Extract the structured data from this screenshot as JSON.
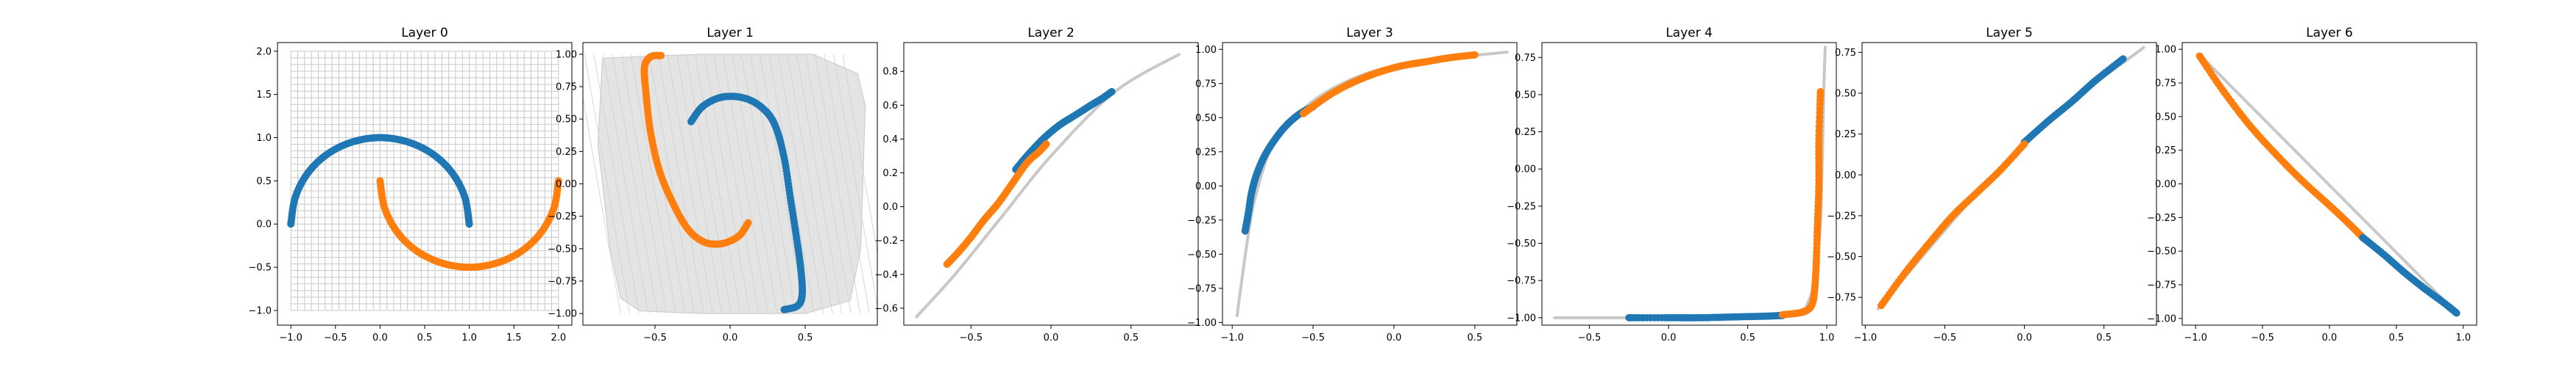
{
  "colors": {
    "blue": "#1f77b4",
    "orange": "#ff7f0e",
    "grid": "#c8c8c8",
    "axis": "#000000"
  },
  "chart_data": [
    {
      "type": "scatter",
      "title": "Layer 0",
      "xlim": [
        -1.15,
        2.15
      ],
      "ylim": [
        -1.17,
        2.1
      ],
      "xticks": [
        {
          "v": -1.0,
          "label": "−1.0"
        },
        {
          "v": -0.5,
          "label": "−0.5"
        },
        {
          "v": 0.0,
          "label": "0.0"
        },
        {
          "v": 0.5,
          "label": "0.5"
        },
        {
          "v": 1.0,
          "label": "1.0"
        },
        {
          "v": 1.5,
          "label": "1.5"
        },
        {
          "v": 2.0,
          "label": "2.0"
        }
      ],
      "yticks": [
        {
          "v": -1.0,
          "label": "−1.0"
        },
        {
          "v": -0.5,
          "label": "−0.5"
        },
        {
          "v": 0.0,
          "label": "0.0"
        },
        {
          "v": 0.5,
          "label": "0.5"
        },
        {
          "v": 1.0,
          "label": "1.0"
        },
        {
          "v": 1.5,
          "label": "1.5"
        },
        {
          "v": 2.0,
          "label": "2.0"
        }
      ],
      "grid_mesh": {
        "xmin": -1.0,
        "xmax": 2.0,
        "ymin": -1.0,
        "ymax": 2.0,
        "lines": 40
      },
      "series": [
        {
          "color": "blue",
          "points": [
            [
              -1.0,
              0.0
            ],
            [
              -0.95,
              0.31
            ],
            [
              -0.81,
              0.59
            ],
            [
              -0.59,
              0.81
            ],
            [
              -0.31,
              0.95
            ],
            [
              0.0,
              1.0
            ],
            [
              0.31,
              0.95
            ],
            [
              0.59,
              0.81
            ],
            [
              0.81,
              0.59
            ],
            [
              0.95,
              0.31
            ],
            [
              1.0,
              0.0
            ]
          ]
        },
        {
          "color": "orange",
          "points": [
            [
              0.0,
              0.5
            ],
            [
              0.05,
              0.19
            ],
            [
              0.19,
              -0.09
            ],
            [
              0.41,
              -0.31
            ],
            [
              0.69,
              -0.45
            ],
            [
              1.0,
              -0.5
            ],
            [
              1.31,
              -0.45
            ],
            [
              1.59,
              -0.31
            ],
            [
              1.81,
              -0.09
            ],
            [
              1.95,
              0.19
            ],
            [
              2.0,
              0.5
            ]
          ]
        }
      ]
    },
    {
      "type": "scatter",
      "title": "Layer 1",
      "xlim": [
        -0.98,
        0.98
      ],
      "ylim": [
        -1.09,
        1.09
      ],
      "xticks": [
        {
          "v": -0.5,
          "label": "−0.5"
        },
        {
          "v": 0.0,
          "label": "0.0"
        },
        {
          "v": 0.5,
          "label": "0.5"
        }
      ],
      "yticks": [
        {
          "v": -1.0,
          "label": "−1.00"
        },
        {
          "v": -0.75,
          "label": "−0.75"
        },
        {
          "v": -0.5,
          "label": "−0.50"
        },
        {
          "v": -0.25,
          "label": "−0.25"
        },
        {
          "v": 0.0,
          "label": "0.00"
        },
        {
          "v": 0.25,
          "label": "0.25"
        },
        {
          "v": 0.5,
          "label": "0.50"
        },
        {
          "v": 0.75,
          "label": "0.75"
        },
        {
          "v": 1.0,
          "label": "1.00"
        }
      ],
      "warped_region": [
        [
          -0.85,
          0.97
        ],
        [
          -0.2,
          1.0
        ],
        [
          0.55,
          1.0
        ],
        [
          0.85,
          0.85
        ],
        [
          0.9,
          0.6
        ],
        [
          0.87,
          -0.5
        ],
        [
          0.8,
          -0.9
        ],
        [
          0.5,
          -1.0
        ],
        [
          -0.2,
          -1.0
        ],
        [
          -0.6,
          -0.98
        ],
        [
          -0.73,
          -0.88
        ],
        [
          -0.8,
          -0.5
        ],
        [
          -0.88,
          0.3
        ]
      ],
      "series": [
        {
          "color": "blue",
          "points": [
            [
              -0.26,
              0.48
            ],
            [
              -0.18,
              0.6
            ],
            [
              -0.05,
              0.67
            ],
            [
              0.1,
              0.66
            ],
            [
              0.22,
              0.58
            ],
            [
              0.3,
              0.45
            ],
            [
              0.36,
              0.2
            ],
            [
              0.4,
              -0.1
            ],
            [
              0.44,
              -0.4
            ],
            [
              0.47,
              -0.65
            ],
            [
              0.48,
              -0.85
            ],
            [
              0.45,
              -0.94
            ],
            [
              0.36,
              -0.97
            ]
          ]
        },
        {
          "color": "orange",
          "points": [
            [
              -0.46,
              0.99
            ],
            [
              -0.53,
              0.98
            ],
            [
              -0.57,
              0.9
            ],
            [
              -0.56,
              0.7
            ],
            [
              -0.53,
              0.4
            ],
            [
              -0.47,
              0.1
            ],
            [
              -0.38,
              -0.15
            ],
            [
              -0.28,
              -0.35
            ],
            [
              -0.17,
              -0.45
            ],
            [
              -0.05,
              -0.46
            ],
            [
              0.06,
              -0.4
            ],
            [
              0.12,
              -0.3
            ]
          ]
        }
      ]
    },
    {
      "type": "scatter",
      "title": "Layer 2",
      "xlim": [
        -0.92,
        0.92
      ],
      "ylim": [
        -0.7,
        0.97
      ],
      "xticks": [
        {
          "v": -0.5,
          "label": "−0.5"
        },
        {
          "v": 0.0,
          "label": "0.0"
        },
        {
          "v": 0.5,
          "label": "0.5"
        }
      ],
      "yticks": [
        {
          "v": -0.6,
          "label": "−0.6"
        },
        {
          "v": -0.4,
          "label": "−0.4"
        },
        {
          "v": -0.2,
          "label": "−0.2"
        },
        {
          "v": 0.0,
          "label": "0.0"
        },
        {
          "v": 0.2,
          "label": "0.2"
        },
        {
          "v": 0.4,
          "label": "0.4"
        },
        {
          "v": 0.6,
          "label": "0.6"
        },
        {
          "v": 0.8,
          "label": "0.8"
        }
      ],
      "manifold": [
        [
          -0.84,
          -0.65
        ],
        [
          -0.6,
          -0.4
        ],
        [
          -0.3,
          -0.05
        ],
        [
          0.0,
          0.3
        ],
        [
          0.4,
          0.68
        ],
        [
          0.8,
          0.9
        ]
      ],
      "series": [
        {
          "color": "blue",
          "points": [
            [
              -0.22,
              0.22
            ],
            [
              -0.15,
              0.3
            ],
            [
              -0.05,
              0.4
            ],
            [
              0.05,
              0.48
            ],
            [
              0.15,
              0.54
            ],
            [
              0.25,
              0.6
            ],
            [
              0.32,
              0.64
            ],
            [
              0.38,
              0.68
            ]
          ]
        },
        {
          "color": "orange",
          "points": [
            [
              -0.65,
              -0.34
            ],
            [
              -0.58,
              -0.27
            ],
            [
              -0.5,
              -0.18
            ],
            [
              -0.42,
              -0.08
            ],
            [
              -0.33,
              0.02
            ],
            [
              -0.24,
              0.14
            ],
            [
              -0.15,
              0.26
            ],
            [
              -0.08,
              0.32
            ],
            [
              -0.03,
              0.37
            ]
          ]
        }
      ]
    },
    {
      "type": "scatter",
      "title": "Layer 3",
      "xlim": [
        -1.06,
        0.76
      ],
      "ylim": [
        -1.02,
        1.05
      ],
      "xticks": [
        {
          "v": -1.0,
          "label": "−1.0"
        },
        {
          "v": -0.5,
          "label": "−0.5"
        },
        {
          "v": 0.0,
          "label": "0.0"
        },
        {
          "v": 0.5,
          "label": "0.5"
        }
      ],
      "yticks": [
        {
          "v": -1.0,
          "label": "−1.00"
        },
        {
          "v": -0.75,
          "label": "−0.75"
        },
        {
          "v": -0.5,
          "label": "−0.50"
        },
        {
          "v": -0.25,
          "label": "−0.25"
        },
        {
          "v": 0.0,
          "label": "0.00"
        },
        {
          "v": 0.25,
          "label": "0.25"
        },
        {
          "v": 0.5,
          "label": "0.50"
        },
        {
          "v": 0.75,
          "label": "0.75"
        },
        {
          "v": 1.0,
          "label": "1.00"
        }
      ],
      "manifold": [
        [
          -0.97,
          -0.95
        ],
        [
          -0.9,
          -0.35
        ],
        [
          -0.85,
          -0.05
        ],
        [
          -0.75,
          0.3
        ],
        [
          -0.6,
          0.52
        ],
        [
          -0.4,
          0.7
        ],
        [
          -0.1,
          0.85
        ],
        [
          0.3,
          0.93
        ],
        [
          0.7,
          0.98
        ]
      ],
      "series": [
        {
          "color": "blue",
          "points": [
            [
              -0.92,
              -0.33
            ],
            [
              -0.9,
              -0.2
            ],
            [
              -0.88,
              -0.05
            ],
            [
              -0.85,
              0.08
            ],
            [
              -0.8,
              0.22
            ],
            [
              -0.73,
              0.35
            ],
            [
              -0.66,
              0.45
            ],
            [
              -0.58,
              0.53
            ],
            [
              -0.5,
              0.58
            ]
          ]
        },
        {
          "color": "orange",
          "points": [
            [
              -0.56,
              0.53
            ],
            [
              -0.48,
              0.6
            ],
            [
              -0.38,
              0.68
            ],
            [
              -0.25,
              0.76
            ],
            [
              -0.1,
              0.83
            ],
            [
              0.05,
              0.88
            ],
            [
              0.2,
              0.91
            ],
            [
              0.35,
              0.94
            ],
            [
              0.5,
              0.96
            ]
          ]
        }
      ]
    },
    {
      "type": "scatter",
      "title": "Layer 4",
      "xlim": [
        -0.8,
        1.06
      ],
      "ylim": [
        -1.05,
        0.85
      ],
      "xticks": [
        {
          "v": -0.5,
          "label": "−0.5"
        },
        {
          "v": 0.0,
          "label": "0.0"
        },
        {
          "v": 0.5,
          "label": "0.5"
        },
        {
          "v": 1.0,
          "label": "1.0"
        }
      ],
      "yticks": [
        {
          "v": -1.0,
          "label": "−1.00"
        },
        {
          "v": -0.75,
          "label": "−0.75"
        },
        {
          "v": -0.5,
          "label": "−0.50"
        },
        {
          "v": -0.25,
          "label": "−0.25"
        },
        {
          "v": 0.0,
          "label": "0.00"
        },
        {
          "v": 0.25,
          "label": "0.25"
        },
        {
          "v": 0.5,
          "label": "0.50"
        },
        {
          "v": 0.75,
          "label": "0.75"
        }
      ],
      "manifold": [
        [
          -0.72,
          -1.0
        ],
        [
          0.7,
          -0.99
        ],
        [
          0.88,
          -0.9
        ],
        [
          0.95,
          -0.5
        ],
        [
          0.97,
          0.0
        ],
        [
          0.98,
          0.5
        ],
        [
          0.99,
          0.82
        ]
      ],
      "series": [
        {
          "color": "blue",
          "points": [
            [
              -0.25,
              -1.0
            ],
            [
              0.0,
              -1.0
            ],
            [
              0.2,
              -1.0
            ],
            [
              0.4,
              -0.995
            ],
            [
              0.6,
              -0.99
            ],
            [
              0.72,
              -0.985
            ]
          ]
        },
        {
          "color": "orange",
          "points": [
            [
              0.72,
              -0.98
            ],
            [
              0.85,
              -0.96
            ],
            [
              0.91,
              -0.9
            ],
            [
              0.93,
              -0.7
            ],
            [
              0.94,
              -0.4
            ],
            [
              0.95,
              -0.1
            ],
            [
              0.95,
              0.2
            ],
            [
              0.96,
              0.52
            ]
          ]
        }
      ]
    },
    {
      "type": "scatter",
      "title": "Layer 5",
      "xlim": [
        -1.02,
        0.83
      ],
      "ylim": [
        -0.92,
        0.81
      ],
      "xticks": [
        {
          "v": -1.0,
          "label": "−1.0"
        },
        {
          "v": -0.5,
          "label": "−0.5"
        },
        {
          "v": 0.0,
          "label": "0.0"
        },
        {
          "v": 0.5,
          "label": "0.5"
        }
      ],
      "yticks": [
        {
          "v": -0.75,
          "label": "−0.75"
        },
        {
          "v": -0.5,
          "label": "−0.50"
        },
        {
          "v": -0.25,
          "label": "−0.25"
        },
        {
          "v": 0.0,
          "label": "0.00"
        },
        {
          "v": 0.25,
          "label": "0.25"
        },
        {
          "v": 0.5,
          "label": "0.50"
        },
        {
          "v": 0.75,
          "label": "0.75"
        }
      ],
      "manifold": [
        [
          -0.92,
          -0.82
        ],
        [
          0.0,
          0.2
        ],
        [
          0.75,
          0.78
        ]
      ],
      "series": [
        {
          "color": "blue",
          "points": [
            [
              0.0,
              0.2
            ],
            [
              0.15,
              0.33
            ],
            [
              0.3,
              0.45
            ],
            [
              0.45,
              0.58
            ],
            [
              0.62,
              0.71
            ]
          ]
        },
        {
          "color": "orange",
          "points": [
            [
              -0.9,
              -0.8
            ],
            [
              -0.75,
              -0.6
            ],
            [
              -0.6,
              -0.42
            ],
            [
              -0.45,
              -0.25
            ],
            [
              -0.3,
              -0.11
            ],
            [
              -0.15,
              0.03
            ],
            [
              0.0,
              0.19
            ]
          ]
        }
      ]
    },
    {
      "type": "scatter",
      "title": "Layer 6",
      "xlim": [
        -1.1,
        1.1
      ],
      "ylim": [
        -1.05,
        1.05
      ],
      "xticks": [
        {
          "v": -1.0,
          "label": "−1.0"
        },
        {
          "v": -0.5,
          "label": "−0.5"
        },
        {
          "v": 0.0,
          "label": "0.0"
        },
        {
          "v": 0.5,
          "label": "0.5"
        },
        {
          "v": 1.0,
          "label": "1.0"
        }
      ],
      "yticks": [
        {
          "v": -1.0,
          "label": "−1.00"
        },
        {
          "v": -0.75,
          "label": "−0.75"
        },
        {
          "v": -0.5,
          "label": "−0.50"
        },
        {
          "v": -0.25,
          "label": "−0.25"
        },
        {
          "v": 0.0,
          "label": "0.00"
        },
        {
          "v": 0.25,
          "label": "0.25"
        },
        {
          "v": 0.5,
          "label": "0.50"
        },
        {
          "v": 0.75,
          "label": "0.75"
        },
        {
          "v": 1.0,
          "label": "1.00"
        }
      ],
      "manifold": [
        [
          -0.97,
          0.96
        ],
        [
          0.96,
          -0.97
        ]
      ],
      "series": [
        {
          "color": "orange",
          "points": [
            [
              -0.97,
              0.95
            ],
            [
              -0.8,
              0.7
            ],
            [
              -0.6,
              0.44
            ],
            [
              -0.4,
              0.22
            ],
            [
              -0.2,
              0.02
            ],
            [
              0.0,
              -0.16
            ],
            [
              0.15,
              -0.3
            ],
            [
              0.25,
              -0.4
            ]
          ]
        },
        {
          "color": "blue",
          "points": [
            [
              0.25,
              -0.4
            ],
            [
              0.4,
              -0.52
            ],
            [
              0.55,
              -0.65
            ],
            [
              0.7,
              -0.77
            ],
            [
              0.85,
              -0.88
            ],
            [
              0.95,
              -0.96
            ]
          ]
        }
      ]
    }
  ]
}
